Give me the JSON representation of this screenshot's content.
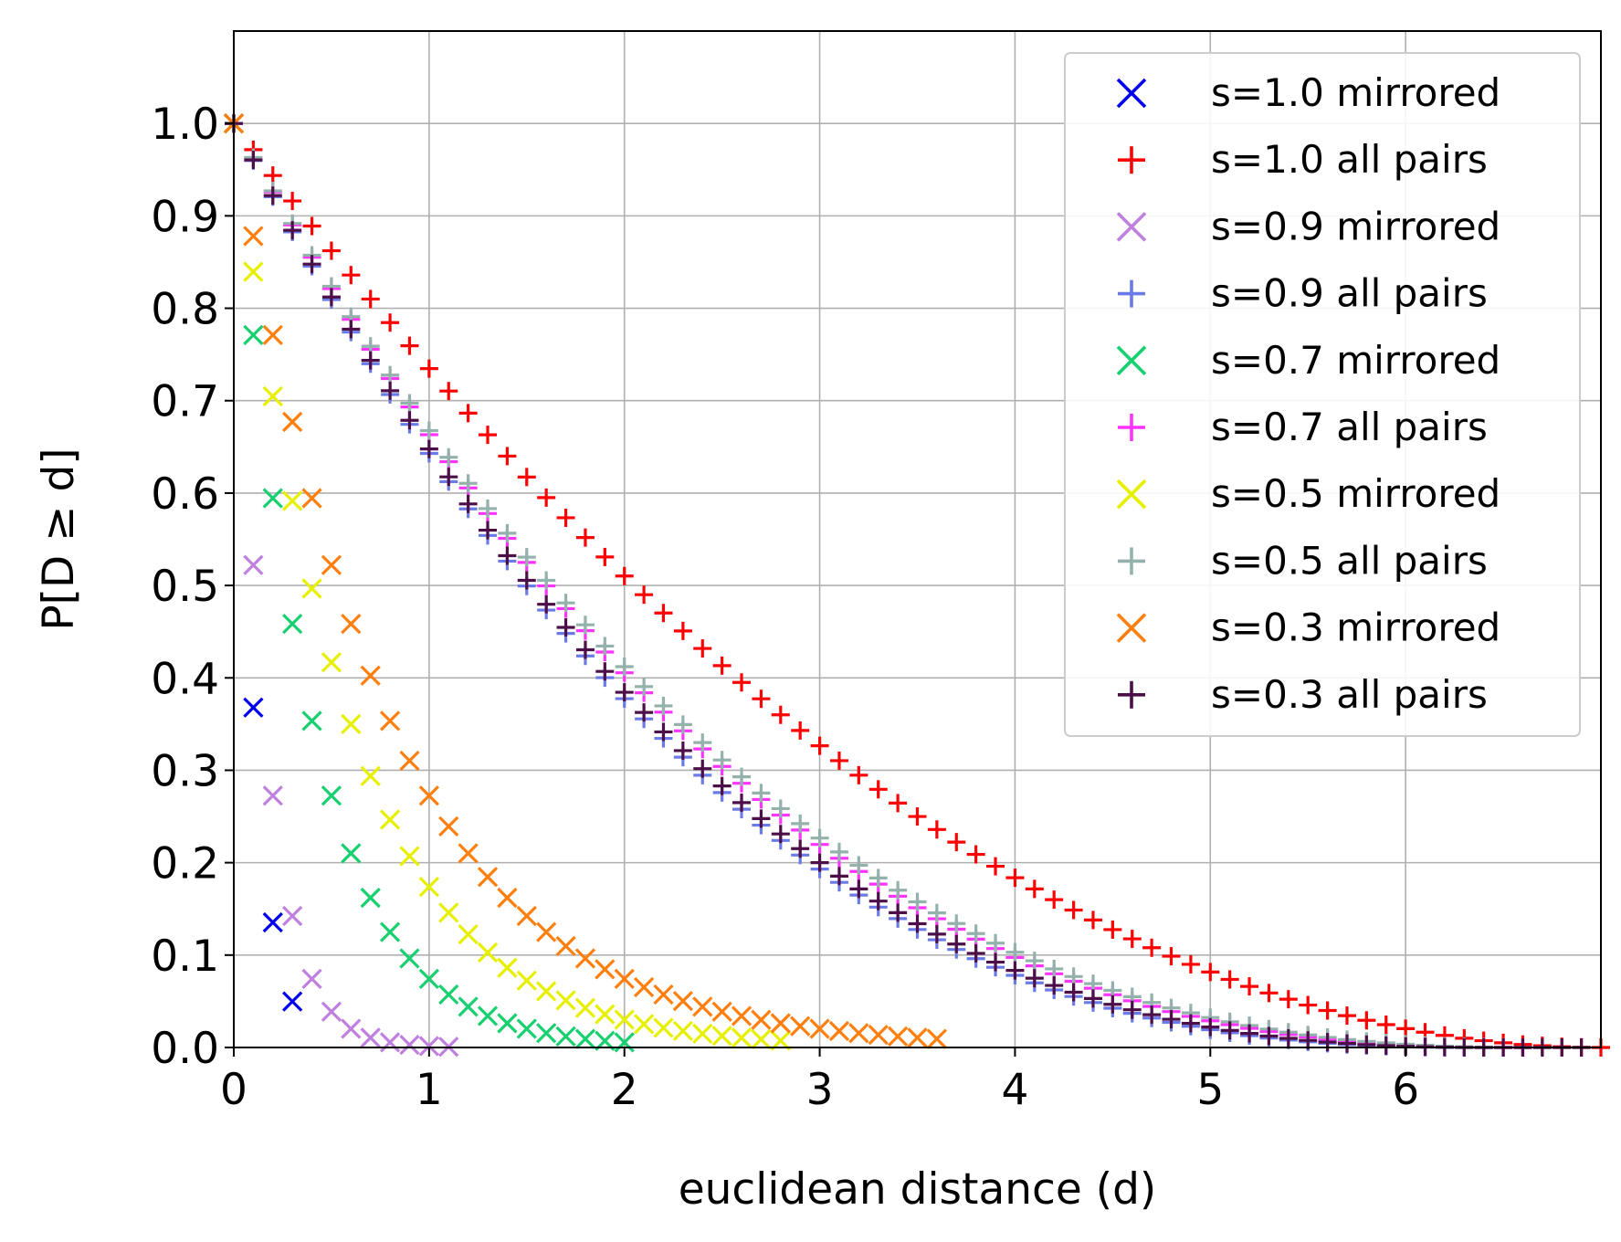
{
  "chart_data": {
    "type": "scatter",
    "title": "",
    "xlabel": "euclidean distance (d)",
    "ylabel": "P[D ≥ d]",
    "xlim": [
      0,
      7
    ],
    "ylim": [
      0,
      1.1
    ],
    "xticks": [
      "0",
      "1",
      "2",
      "3",
      "4",
      "5",
      "6"
    ],
    "yticks": [
      "0.0",
      "0.1",
      "0.2",
      "0.3",
      "0.4",
      "0.5",
      "0.6",
      "0.7",
      "0.8",
      "0.9",
      "1.0"
    ],
    "grid": true,
    "legend_position": "top-right",
    "series": [
      {
        "name": "s=1.0 mirrored",
        "marker": "x",
        "color": "#0000ee",
        "fn": "exp",
        "k": 10,
        "xmax": 0.35
      },
      {
        "name": "s=1.0 all pairs",
        "marker": "+",
        "color": "#ff0000",
        "fn": "quad",
        "c": 7.0,
        "xmax": 7.0
      },
      {
        "name": "s=0.9 mirrored",
        "marker": "x",
        "color": "#c080e0",
        "fn": "exp",
        "k": 6.5,
        "xmax": 1.1
      },
      {
        "name": "s=0.9 all pairs",
        "marker": "+",
        "color": "#6a7ae6",
        "fn": "power",
        "c": 6.4,
        "p": 2.6,
        "xmax": 6.4
      },
      {
        "name": "s=0.7 mirrored",
        "marker": "x",
        "color": "#18d070",
        "fn": "exp",
        "k": 2.6,
        "xmax": 2.0
      },
      {
        "name": "s=0.7 all pairs",
        "marker": "+",
        "color": "#ff33ff",
        "fn": "power",
        "c": 6.6,
        "p": 2.5,
        "xmax": 6.6
      },
      {
        "name": "s=0.5 mirrored",
        "marker": "x",
        "color": "#e6f000",
        "fn": "exp",
        "k": 1.75,
        "xmax": 2.8
      },
      {
        "name": "s=0.5 all pairs",
        "marker": "+",
        "color": "#94b2ac",
        "fn": "power",
        "c": 6.7,
        "p": 2.5,
        "xmax": 6.7
      },
      {
        "name": "s=0.3 mirrored",
        "marker": "x",
        "color": "#ff7f0e",
        "fn": "exp",
        "k": 1.3,
        "xmax": 3.6
      },
      {
        "name": "s=0.3 all pairs",
        "marker": "+",
        "color": "#4d0f48",
        "fn": "power",
        "c": 6.5,
        "p": 2.6,
        "xmax": 6.9
      }
    ]
  }
}
